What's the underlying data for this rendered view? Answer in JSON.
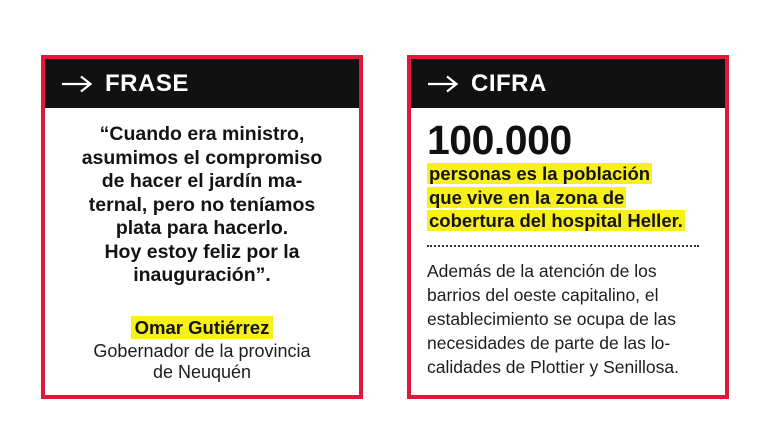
{
  "frase": {
    "title": "FRASE",
    "arrow_icon": "arrow-right-icon",
    "quote_lines": [
      "“Cuando era ministro,",
      "asumimos el compromiso",
      "de hacer el jardín ma-",
      "ternal, pero no teníamos",
      "plata para hacerlo.",
      "Hoy estoy feliz por la",
      "inauguración”."
    ],
    "author": "Omar Gutiérrez",
    "role_lines": [
      "Gobernador de la provincia",
      "de Neuquén"
    ]
  },
  "cifra": {
    "title": "CIFRA",
    "arrow_icon": "arrow-right-icon",
    "number": "100.000",
    "description_lines": [
      "personas es la población",
      "que vive en la zona de",
      "cobertura del hospital Heller."
    ],
    "detail_lines": [
      "Además de la atención de los",
      "barrios del oeste capitalino, el",
      "establecimiento se ocupa de las",
      "necesidades de parte de las lo-",
      "calidades de Plottier y Senillosa."
    ]
  },
  "colors": {
    "border": "#e3173a",
    "header_bg": "#111111",
    "highlight": "#f7f01a"
  }
}
